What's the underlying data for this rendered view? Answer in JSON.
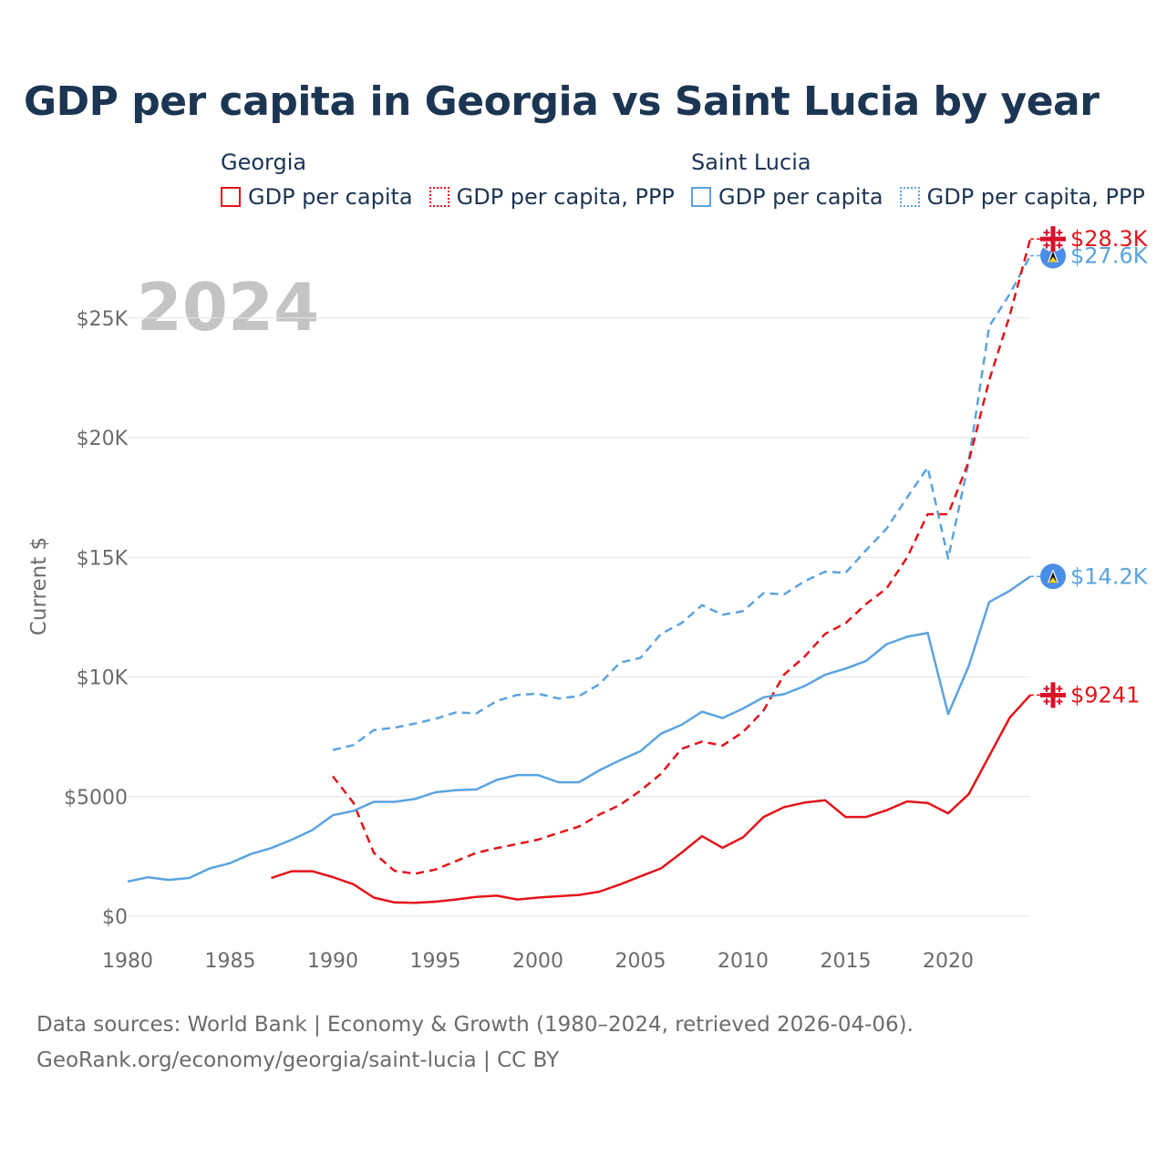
{
  "title": "GDP per capita in Georgia vs Saint Lucia by year",
  "legend": [
    {
      "country": "Georgia",
      "color": "#e3141a",
      "items": [
        "GDP per capita",
        "GDP per capita, PPP"
      ]
    },
    {
      "country": "Saint Lucia",
      "color": "#5ba3e0",
      "items": [
        "GDP per capita",
        "GDP per capita, PPP"
      ]
    }
  ],
  "year_label": "2024",
  "footer": {
    "line1": "Data sources: World Bank | Economy & Growth (1980–2024, retrieved 2026-04-06).",
    "line2": "GeoRank.org/economy/georgia/saint-lucia | CC BY"
  },
  "chart_data": {
    "type": "line",
    "title": "GDP per capita in Georgia vs Saint Lucia by year",
    "xlabel": "",
    "ylabel": "Current $",
    "xlim": [
      1980,
      2024
    ],
    "ylim": [
      0,
      28000
    ],
    "grid": true,
    "x_ticks": [
      1980,
      1985,
      1990,
      1995,
      2000,
      2005,
      2010,
      2015,
      2020
    ],
    "y_ticks": [
      {
        "value": 0,
        "label": "$0"
      },
      {
        "value": 5000,
        "label": "$5000"
      },
      {
        "value": 10000,
        "label": "$10K"
      },
      {
        "value": 15000,
        "label": "$15K"
      },
      {
        "value": 20000,
        "label": "$20K"
      },
      {
        "value": 25000,
        "label": "$25K"
      }
    ],
    "series": [
      {
        "name": "Saint Lucia GDP per capita, PPP",
        "country": "Saint Lucia",
        "color": "#5ba3e0",
        "style": "dashed",
        "x": [
          1990,
          1991,
          1992,
          1993,
          1994,
          1995,
          1996,
          1997,
          1998,
          1999,
          2000,
          2001,
          2002,
          2003,
          2004,
          2005,
          2006,
          2007,
          2008,
          2009,
          2010,
          2011,
          2012,
          2013,
          2014,
          2015,
          2016,
          2017,
          2018,
          2019,
          2020,
          2021,
          2022,
          2023,
          2024
        ],
        "values": [
          6950,
          7150,
          7780,
          7880,
          8050,
          8250,
          8520,
          8480,
          9000,
          9250,
          9300,
          9100,
          9200,
          9700,
          10600,
          10800,
          11800,
          12250,
          13000,
          12600,
          12750,
          13500,
          13450,
          14000,
          14400,
          14350,
          15300,
          16200,
          17500,
          18750,
          14950,
          19000,
          24650,
          26000,
          27600
        ],
        "end_label": "$27.6K"
      },
      {
        "name": "Georgia GDP per capita, PPP",
        "country": "Georgia",
        "color": "#e3141a",
        "style": "dashed",
        "x": [
          1990,
          1991,
          1992,
          1993,
          1994,
          1995,
          1996,
          1997,
          1998,
          1999,
          2000,
          2001,
          2002,
          2003,
          2004,
          2005,
          2006,
          2007,
          2008,
          2009,
          2010,
          2011,
          2012,
          2013,
          2014,
          2015,
          2016,
          2017,
          2018,
          2019,
          2020,
          2021,
          2022,
          2023,
          2024
        ],
        "values": [
          5850,
          4750,
          2650,
          1900,
          1780,
          1950,
          2300,
          2650,
          2850,
          3020,
          3200,
          3480,
          3750,
          4250,
          4650,
          5250,
          5950,
          7000,
          7300,
          7130,
          7700,
          8600,
          10100,
          10850,
          11800,
          12250,
          13050,
          13700,
          15000,
          16800,
          16800,
          19000,
          22400,
          25100,
          28300
        ],
        "end_label": "$28.3K"
      },
      {
        "name": "Saint Lucia GDP per capita",
        "country": "Saint Lucia",
        "color": "#5ba3e0",
        "style": "solid",
        "x": [
          1980,
          1981,
          1982,
          1983,
          1984,
          1985,
          1986,
          1987,
          1988,
          1989,
          1990,
          1991,
          1992,
          1993,
          1994,
          1995,
          1996,
          1997,
          1998,
          1999,
          2000,
          2001,
          2002,
          2003,
          2004,
          2005,
          2006,
          2007,
          2008,
          2009,
          2010,
          2011,
          2012,
          2013,
          2014,
          2015,
          2016,
          2017,
          2018,
          2019,
          2020,
          2021,
          2022,
          2023,
          2024
        ],
        "values": [
          1450,
          1630,
          1520,
          1600,
          2000,
          2220,
          2600,
          2850,
          3200,
          3600,
          4220,
          4400,
          4780,
          4780,
          4900,
          5180,
          5270,
          5300,
          5700,
          5900,
          5900,
          5600,
          5600,
          6100,
          6520,
          6900,
          7630,
          8000,
          8550,
          8280,
          8680,
          9150,
          9280,
          9620,
          10090,
          10350,
          10670,
          11370,
          11680,
          11840,
          8450,
          10450,
          13130,
          13600,
          14200
        ],
        "end_label": "$14.2K"
      },
      {
        "name": "Georgia GDP per capita",
        "country": "Georgia",
        "color": "#e3141a",
        "style": "solid",
        "x": [
          1987,
          1988,
          1989,
          1990,
          1991,
          1992,
          1993,
          1994,
          1995,
          1996,
          1997,
          1998,
          1999,
          2000,
          2001,
          2002,
          2003,
          2004,
          2005,
          2006,
          2007,
          2008,
          2009,
          2010,
          2011,
          2012,
          2013,
          2014,
          2015,
          2016,
          2017,
          2018,
          2019,
          2020,
          2021,
          2022,
          2023,
          2024
        ],
        "values": [
          1600,
          1880,
          1880,
          1640,
          1340,
          780,
          580,
          560,
          610,
          700,
          810,
          860,
          700,
          780,
          840,
          890,
          1030,
          1330,
          1670,
          2000,
          2650,
          3350,
          2860,
          3300,
          4150,
          4560,
          4750,
          4850,
          4150,
          4150,
          4430,
          4800,
          4730,
          4300,
          5100,
          6700,
          8300,
          9241
        ],
        "end_label": "$9241"
      }
    ]
  }
}
